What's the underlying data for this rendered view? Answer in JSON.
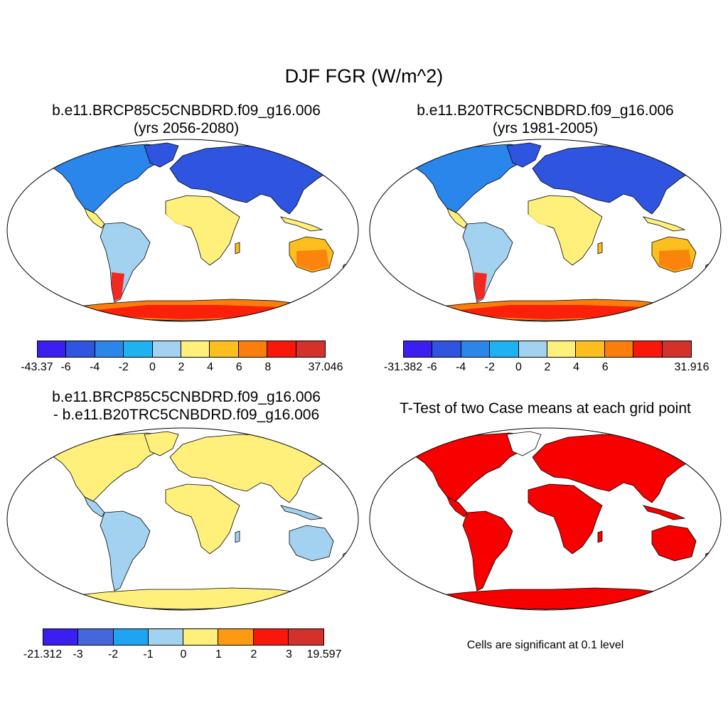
{
  "title": "DJF FGR (W/m^2)",
  "panels": [
    {
      "title_lines": [
        "b.e11.BRCP85C5CNBDRD.f09_g16.006",
        "(yrs 2056-2080)"
      ],
      "colorbar": {
        "colors": [
          "#3a1ff0",
          "#2f55e0",
          "#2b86ec",
          "#1fb2f2",
          "#a3d2f0",
          "#fff07c",
          "#fdbf1e",
          "#fb7d0b",
          "#f9160a",
          "#d4312a"
        ],
        "labels": [
          "-43.37",
          "-6",
          "-4",
          "-2",
          "0",
          "2",
          "4",
          "6",
          "8",
          "37.046"
        ]
      }
    },
    {
      "title_lines": [
        "b.e11.B20TRC5CNBDRD.f09_g16.006",
        "(yrs 1981-2005)"
      ],
      "colorbar": {
        "colors": [
          "#3a1ff0",
          "#2f55e0",
          "#2b86ec",
          "#1fb2f2",
          "#a3d2f0",
          "#fff07c",
          "#fdbf1e",
          "#fb7d0b",
          "#f9160a",
          "#d4312a"
        ],
        "labels": [
          "-31.382",
          "-6",
          "-4",
          "-2",
          "0",
          "2",
          "4",
          "6",
          "31.916"
        ]
      }
    },
    {
      "title_lines": [
        "b.e11.BRCP85C5CNBDRD.f09_g16.006",
        "- b.e11.B20TRC5CNBDRD.f09_g16.006"
      ],
      "colorbar": {
        "colors": [
          "#3a1ff0",
          "#4666de",
          "#1fa4f2",
          "#a3d2f0",
          "#fff07c",
          "#fd9a12",
          "#f9160a",
          "#d4312a"
        ],
        "labels": [
          "-21.312",
          "-3",
          "-2",
          "-1",
          "0",
          "1",
          "2",
          "3",
          "19.597"
        ]
      }
    },
    {
      "title_lines": [
        "T-Test of two Case means at each grid point"
      ],
      "note": "Cells are significant at 0.1 level",
      "significance_color": "#f80000"
    }
  ]
}
